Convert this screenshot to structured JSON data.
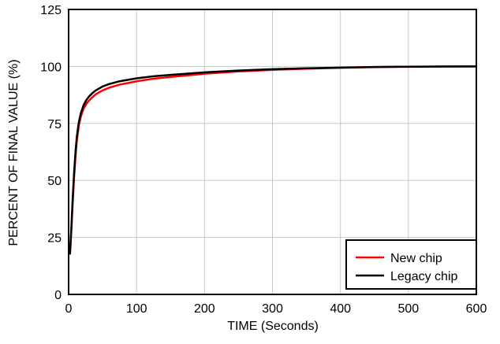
{
  "chart_data": {
    "type": "line",
    "title": "",
    "xlabel": "TIME (Seconds)",
    "ylabel": "PERCENT OF FINAL VALUE (%)",
    "xlim": [
      0,
      600
    ],
    "ylim": [
      0,
      125
    ],
    "xticks": [
      0,
      100,
      200,
      300,
      400,
      500,
      600
    ],
    "yticks": [
      0,
      25,
      50,
      75,
      100,
      125
    ],
    "grid": true,
    "legend_position": "bottom-right",
    "series": [
      {
        "name": "New chip",
        "color": "#ff0000",
        "x": [
          2,
          4,
          6,
          8,
          10,
          12,
          15,
          18,
          22,
          26,
          30,
          35,
          40,
          50,
          60,
          75,
          100,
          125,
          150,
          200,
          250,
          300,
          350,
          400,
          450,
          500,
          550,
          600
        ],
        "y": [
          18,
          28,
          40,
          51,
          60,
          67,
          74,
          78,
          81.5,
          83.5,
          85,
          86.5,
          87.8,
          89.5,
          90.7,
          92,
          93.5,
          94.6,
          95.4,
          96.8,
          97.8,
          98.5,
          99.0,
          99.4,
          99.7,
          99.85,
          99.95,
          100
        ]
      },
      {
        "name": "Legacy chip",
        "color": "#000000",
        "x": [
          2,
          4,
          6,
          8,
          10,
          12,
          15,
          18,
          22,
          26,
          30,
          35,
          40,
          50,
          60,
          75,
          100,
          125,
          150,
          200,
          250,
          300,
          350,
          400,
          450,
          500,
          550,
          600
        ],
        "y": [
          17.5,
          29,
          42,
          53,
          62,
          69,
          75.5,
          79.5,
          83,
          85.2,
          86.8,
          88.3,
          89.5,
          91.2,
          92.3,
          93.5,
          94.8,
          95.7,
          96.3,
          97.4,
          98.2,
          98.8,
          99.2,
          99.5,
          99.75,
          99.9,
          99.97,
          100
        ]
      }
    ]
  }
}
